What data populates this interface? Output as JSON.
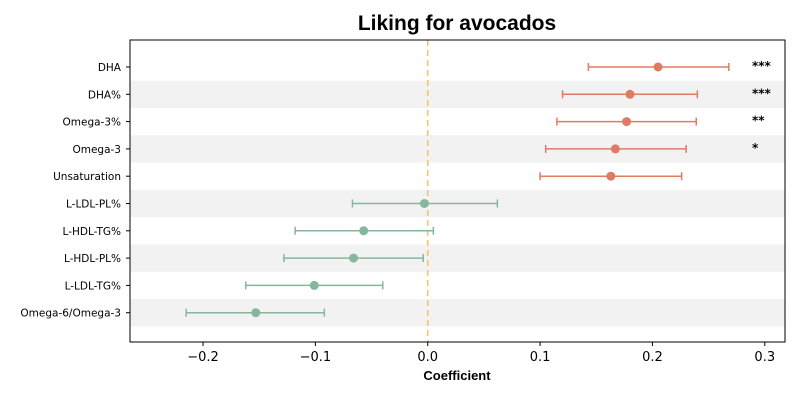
{
  "chart_data": {
    "type": "scatter",
    "title": "Liking for avocados",
    "xlabel": "Coefficient",
    "ylabel": "",
    "xlim": [
      -0.265,
      0.318
    ],
    "x_ticks": [
      -0.2,
      -0.1,
      0.0,
      0.1,
      0.2,
      0.3
    ],
    "x_tick_labels": [
      "−0.2",
      "−0.1",
      "0.0",
      "0.1",
      "0.2",
      "0.3"
    ],
    "reference_line_x": 0.0,
    "grid": false,
    "legend": "none",
    "colors": {
      "positive": "#e07b63",
      "negative": "#86b79d",
      "reference_line": "#f4c56e",
      "band": "#f2f2f2"
    },
    "categories": [
      "DHA",
      "DHA%",
      "Omega-3%",
      "Omega-3",
      "Unsaturation",
      "L-LDL-PL%",
      "L-HDL-TG%",
      "L-HDL-PL%",
      "L-LDL-TG%",
      "Omega-6/Omega-3"
    ],
    "estimate": [
      0.205,
      0.18,
      0.177,
      0.167,
      0.163,
      -0.003,
      -0.057,
      -0.066,
      -0.101,
      -0.153
    ],
    "ci_lower": [
      0.143,
      0.12,
      0.115,
      0.105,
      0.1,
      -0.067,
      -0.118,
      -0.128,
      -0.162,
      -0.215
    ],
    "ci_upper": [
      0.268,
      0.24,
      0.239,
      0.23,
      0.226,
      0.062,
      0.005,
      -0.004,
      -0.04,
      -0.092
    ],
    "significance": [
      "***",
      "***",
      "**",
      "*",
      "",
      "",
      "",
      "",
      "",
      ""
    ]
  }
}
